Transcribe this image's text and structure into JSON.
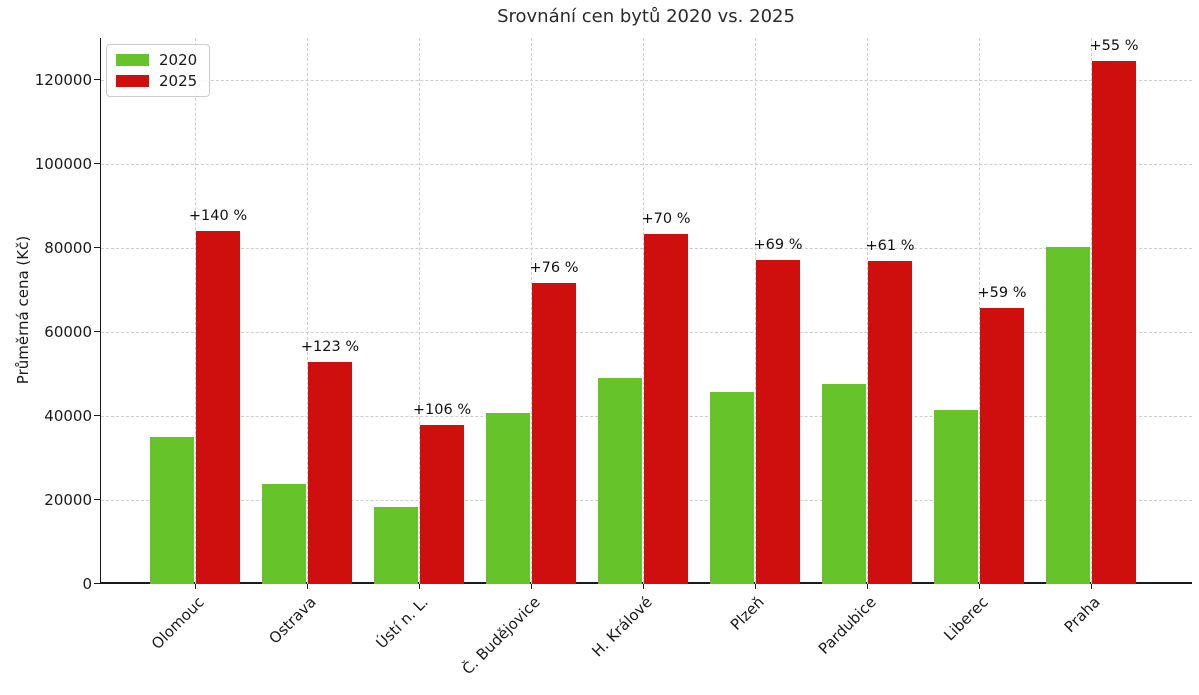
{
  "chart_data": {
    "type": "bar",
    "title": "Srovnání cen bytů 2020 vs. 2025",
    "xlabel": "",
    "ylabel": "Průměrná cena (Kč)",
    "categories": [
      "Olomouc",
      "Ostrava",
      "Ústí n. L.",
      "Č. Budějovice",
      "H. Králové",
      "Plzeň",
      "Pardubice",
      "Liberec",
      "Praha"
    ],
    "series": [
      {
        "name": "2020",
        "color": "#66c42a",
        "values": [
          35000,
          23700,
          18400,
          40700,
          49000,
          45600,
          47700,
          41400,
          80300
        ]
      },
      {
        "name": "2025",
        "color": "#cf0e0e",
        "values": [
          84000,
          52900,
          37900,
          71600,
          83300,
          77100,
          76900,
          65800,
          124500
        ]
      }
    ],
    "bar_labels": [
      "+140 %",
      "+123 %",
      "+106 %",
      "+76 %",
      "+70 %",
      "+69 %",
      "+61 %",
      "+59 %",
      "+55 %"
    ],
    "yticks": [
      0,
      20000,
      40000,
      60000,
      80000,
      100000,
      120000
    ],
    "ylim": [
      0,
      130000
    ],
    "grid": "dashed both axes",
    "legend_position": "upper left",
    "axis_color": "#1a1a1a",
    "grid_color": "#cdcdcd"
  }
}
